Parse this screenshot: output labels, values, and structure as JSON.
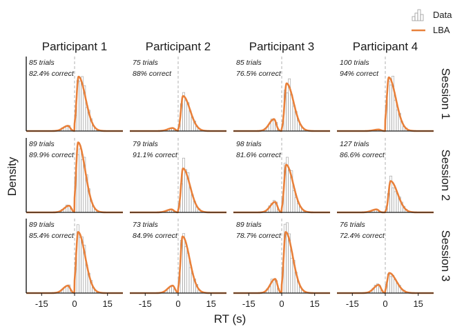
{
  "chart_data": {
    "type": "histogram-density-facet",
    "xlabel": "RT (s)",
    "ylabel": "Density",
    "xlim": [
      -22,
      22
    ],
    "xticks": [
      -15,
      0,
      15
    ],
    "xtick_labels": [
      "-15",
      "0",
      "15"
    ],
    "reference_line_x": 0,
    "columns": [
      "Participant 1",
      "Participant 2",
      "Participant 3",
      "Participant 4"
    ],
    "rows": [
      "Session 1",
      "Session 2",
      "Session 3"
    ],
    "legend": {
      "position": "top-right",
      "entries": [
        {
          "label": "Data",
          "kind": "histogram",
          "color": "#9a9a9a"
        },
        {
          "label": "LBA",
          "kind": "line",
          "color": "#e8803a"
        }
      ]
    },
    "colors": {
      "density": "#e8803a",
      "bars": "#9a9a9a",
      "ref_line": "#bdbdbd"
    },
    "panels": [
      {
        "row": 0,
        "col": 0,
        "trials_label": "85 trials",
        "correct_label": "82.4% correct",
        "pos_peak": 0.73,
        "pos_mode": 1.8,
        "neg_peak": 0.07,
        "neg_mode": -3.0
      },
      {
        "row": 0,
        "col": 1,
        "trials_label": "75 trials",
        "correct_label": "88% correct",
        "pos_peak": 0.47,
        "pos_mode": 2.2,
        "neg_peak": 0.04,
        "neg_mode": -2.5
      },
      {
        "row": 0,
        "col": 2,
        "trials_label": "85 trials",
        "correct_label": "76.5% correct",
        "pos_peak": 0.64,
        "pos_mode": 2.2,
        "neg_peak": 0.16,
        "neg_mode": -3.5
      },
      {
        "row": 0,
        "col": 3,
        "trials_label": "100 trials",
        "correct_label": "94% correct",
        "pos_peak": 0.72,
        "pos_mode": 1.6,
        "neg_peak": 0.02,
        "neg_mode": -3.0
      },
      {
        "row": 1,
        "col": 0,
        "trials_label": "89 trials",
        "correct_label": "89.9% correct",
        "pos_peak": 0.94,
        "pos_mode": 1.6,
        "neg_peak": 0.09,
        "neg_mode": -2.5
      },
      {
        "row": 1,
        "col": 1,
        "trials_label": "79 trials",
        "correct_label": "91.1% correct",
        "pos_peak": 0.59,
        "pos_mode": 2.2,
        "neg_peak": 0.04,
        "neg_mode": -3.0
      },
      {
        "row": 1,
        "col": 2,
        "trials_label": "98 trials",
        "correct_label": "81.6% correct",
        "pos_peak": 0.64,
        "pos_mode": 2.0,
        "neg_peak": 0.14,
        "neg_mode": -3.0
      },
      {
        "row": 1,
        "col": 3,
        "trials_label": "127 trials",
        "correct_label": "86.6% correct",
        "pos_peak": 0.42,
        "pos_mode": 2.4,
        "neg_peak": 0.04,
        "neg_mode": -4.0
      },
      {
        "row": 2,
        "col": 0,
        "trials_label": "89 trials",
        "correct_label": "85.4% correct",
        "pos_peak": 0.82,
        "pos_mode": 1.6,
        "neg_peak": 0.1,
        "neg_mode": -3.0
      },
      {
        "row": 2,
        "col": 1,
        "trials_label": "73 trials",
        "correct_label": "84.9% correct",
        "pos_peak": 0.76,
        "pos_mode": 2.0,
        "neg_peak": 0.1,
        "neg_mode": -2.5
      },
      {
        "row": 2,
        "col": 2,
        "trials_label": "89 trials",
        "correct_label": "78.7% correct",
        "pos_peak": 0.82,
        "pos_mode": 1.8,
        "neg_peak": 0.19,
        "neg_mode": -3.0
      },
      {
        "row": 2,
        "col": 3,
        "trials_label": "76 trials",
        "correct_label": "72.4% correct",
        "pos_peak": 0.27,
        "pos_mode": 1.8,
        "neg_peak": 0.11,
        "neg_mode": -3.0
      }
    ]
  }
}
